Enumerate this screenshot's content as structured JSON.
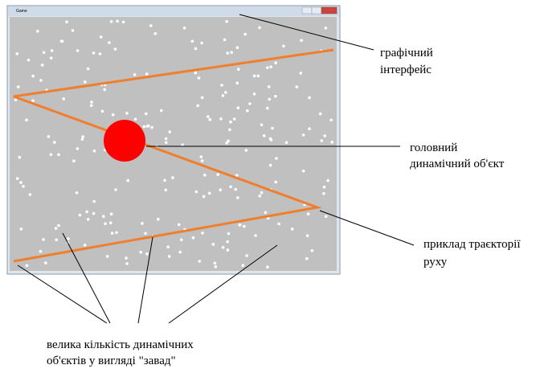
{
  "window": {
    "title": "Game"
  },
  "annotations": {
    "interface": {
      "lines": [
        "графічний",
        "інтерфейс"
      ]
    },
    "main_object": {
      "lines": [
        "головний",
        "динамічний об'єкт"
      ]
    },
    "trajectory": {
      "lines": [
        "приклад траєкторії",
        "руху"
      ]
    },
    "obstacles": {
      "lines": [
        "велика кількість динамічних",
        "об'єктів у вигляді \"завад\""
      ]
    }
  }
}
